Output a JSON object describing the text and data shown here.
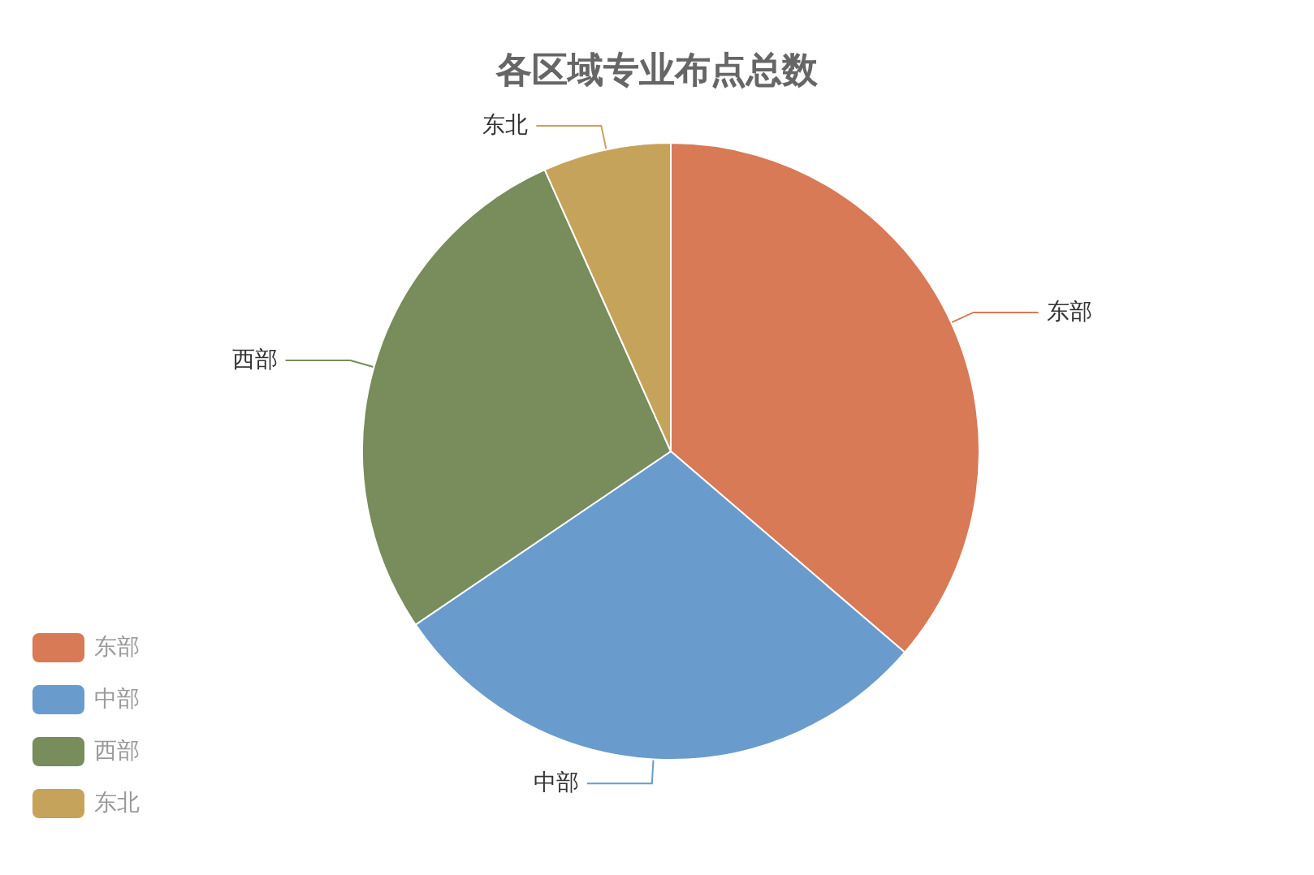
{
  "chart_data": {
    "type": "pie",
    "title": "各区域专业布点总数",
    "categories": [
      "东部",
      "中部",
      "西部",
      "东北"
    ],
    "values": [
      36.3,
      29.2,
      27.8,
      6.7
    ],
    "colors": [
      "#d87a56",
      "#6a9bcd",
      "#788c5c",
      "#c6a35a"
    ],
    "legend": "bottom left"
  }
}
